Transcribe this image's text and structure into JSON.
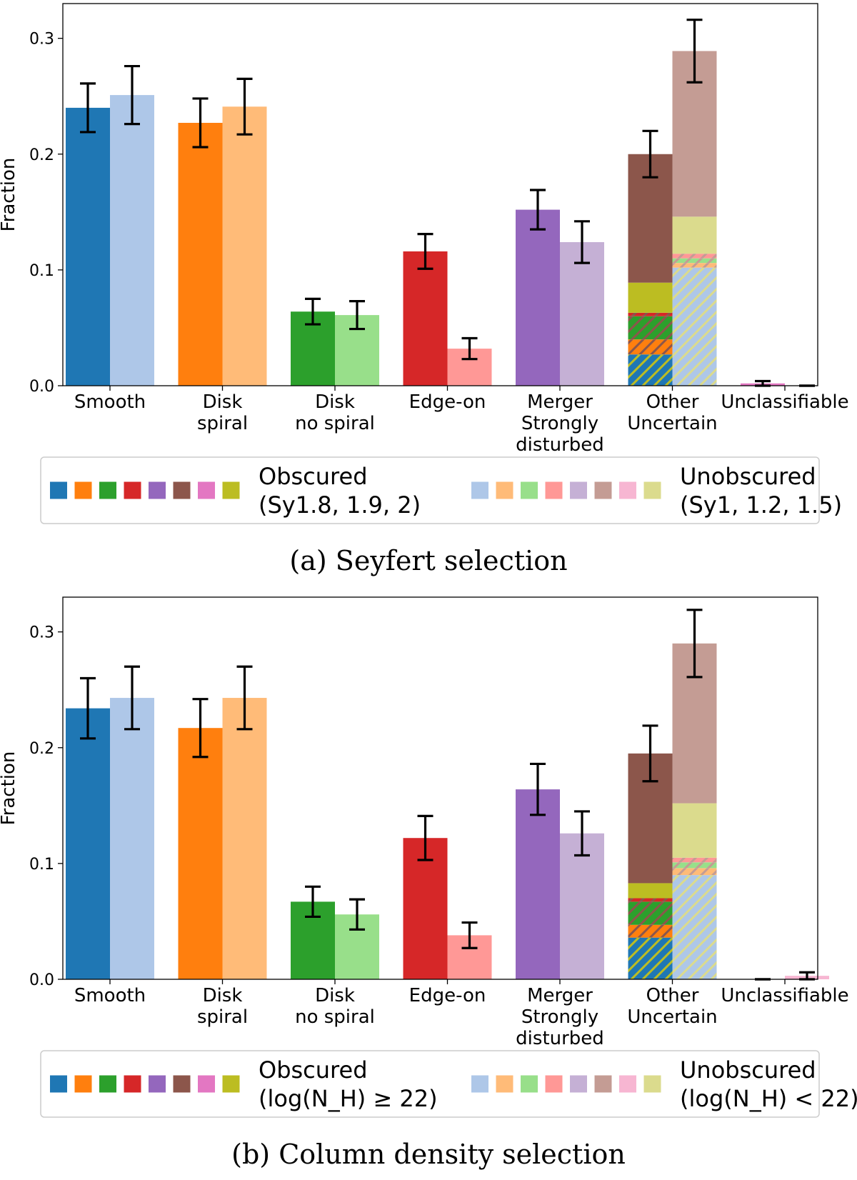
{
  "chart_data": [
    {
      "type": "bar",
      "caption": "(a) Seyfert selection",
      "ylabel": "Fraction",
      "ylim": [
        0,
        0.33
      ],
      "yticks": [
        "0.0",
        "0.1",
        "0.2",
        "0.3"
      ],
      "categories": [
        [
          "Smooth"
        ],
        [
          "Disk",
          "spiral"
        ],
        [
          "Disk",
          "no spiral"
        ],
        [
          "Edge-on"
        ],
        [
          "Merger",
          "Strongly",
          "disturbed"
        ],
        [
          "Other",
          "Uncertain"
        ],
        [
          "Unclassifiable"
        ]
      ],
      "series": [
        {
          "name": "Obscured",
          "values": [
            0.24,
            0.227,
            0.064,
            0.116,
            0.152,
            0.2,
            0.002
          ],
          "err": [
            0.021,
            0.021,
            0.011,
            0.015,
            0.017,
            0.02,
            0.002
          ]
        },
        {
          "name": "Unobscured",
          "values": [
            0.251,
            0.241,
            0.061,
            0.032,
            0.124,
            0.289,
            0.0
          ],
          "err": [
            0.025,
            0.024,
            0.012,
            0.009,
            0.018,
            0.027,
            0.0
          ]
        }
      ],
      "other_breakdown": {
        "obscured": [
          0.027,
          0.013,
          0.02,
          0.003,
          0.026,
          0.111
        ],
        "unobscured": [
          0.102,
          0.004,
          0.004,
          0.004,
          0.032,
          0.143
        ]
      },
      "legend": {
        "obscured_title": "Obscured",
        "obscured_sub": "(Sy1.8, 1.9, 2)",
        "unobscured_title": "Unobscured",
        "unobscured_sub": "(Sy1, 1.2, 1.5)"
      }
    },
    {
      "type": "bar",
      "caption": "(b) Column density selection",
      "ylabel": "Fraction",
      "ylim": [
        0,
        0.33
      ],
      "yticks": [
        "0.0",
        "0.1",
        "0.2",
        "0.3"
      ],
      "categories": [
        [
          "Smooth"
        ],
        [
          "Disk",
          "spiral"
        ],
        [
          "Disk",
          "no spiral"
        ],
        [
          "Edge-on"
        ],
        [
          "Merger",
          "Strongly",
          "disturbed"
        ],
        [
          "Other",
          "Uncertain"
        ],
        [
          "Unclassifiable"
        ]
      ],
      "series": [
        {
          "name": "Obscured",
          "values": [
            0.234,
            0.217,
            0.067,
            0.122,
            0.164,
            0.195,
            0.0
          ],
          "err": [
            0.026,
            0.025,
            0.013,
            0.019,
            0.022,
            0.024,
            0.0
          ]
        },
        {
          "name": "Unobscured",
          "values": [
            0.243,
            0.243,
            0.056,
            0.038,
            0.126,
            0.29,
            0.003
          ],
          "err": [
            0.027,
            0.027,
            0.013,
            0.011,
            0.019,
            0.029,
            0.003
          ]
        }
      ],
      "other_breakdown": {
        "obscured": [
          0.036,
          0.011,
          0.02,
          0.003,
          0.013,
          0.112
        ],
        "unobscured": [
          0.09,
          0.006,
          0.005,
          0.004,
          0.047,
          0.138
        ]
      },
      "legend": {
        "obscured_title": "Obscured",
        "obscured_sub": "(log(N_H) ≥ 22)",
        "unobscured_title": "Unobscured",
        "unobscured_sub": "(log(N_H) < 22)"
      }
    }
  ],
  "colors": {
    "obscured": [
      "#1f77b4",
      "#ff7f0e",
      "#2ca02c",
      "#d62728",
      "#9467bd",
      "#8c564b",
      "#e377c2",
      "#bcbd22"
    ],
    "unobscured": [
      "#aec7e8",
      "#ffbb78",
      "#98df8a",
      "#ff9896",
      "#c5b0d5",
      "#c49c94",
      "#f7b6d2",
      "#dbdb8d"
    ]
  }
}
